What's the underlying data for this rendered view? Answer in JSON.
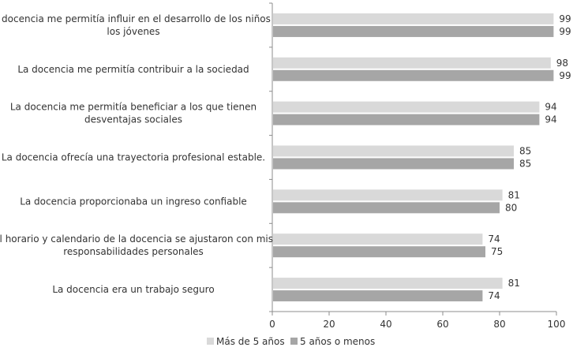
{
  "chart_data": {
    "type": "bar",
    "orientation": "horizontal",
    "categories": [
      [
        "La docencia me permitía influir en el desarrollo de los niños y",
        "los jóvenes"
      ],
      [
        "La docencia me permitía contribuir a la sociedad"
      ],
      [
        "La docencia me permitía beneficiar a los que tienen",
        "desventajas sociales"
      ],
      [
        "La docencia ofrecía una trayectoria profesional estable."
      ],
      [
        "La docencia proporcionaba un ingreso confiable"
      ],
      [
        "El horario y calendario de la docencia se ajustaron con mis",
        "responsabilidades personales"
      ],
      [
        "La docencia era un trabajo seguro"
      ]
    ],
    "series": [
      {
        "name": "Más de 5 años",
        "color": "#d9d9d9",
        "values": [
          99,
          98,
          94,
          85,
          81,
          74,
          81
        ]
      },
      {
        "name": "5 años o menos",
        "color": "#a6a6a6",
        "values": [
          99,
          99,
          94,
          85,
          80,
          75,
          74
        ]
      }
    ],
    "xlim": [
      0,
      100
    ],
    "xticks": [
      0,
      20,
      40,
      60,
      80,
      100
    ],
    "legend": "bottom-left",
    "grid": false,
    "data_labels": true
  }
}
